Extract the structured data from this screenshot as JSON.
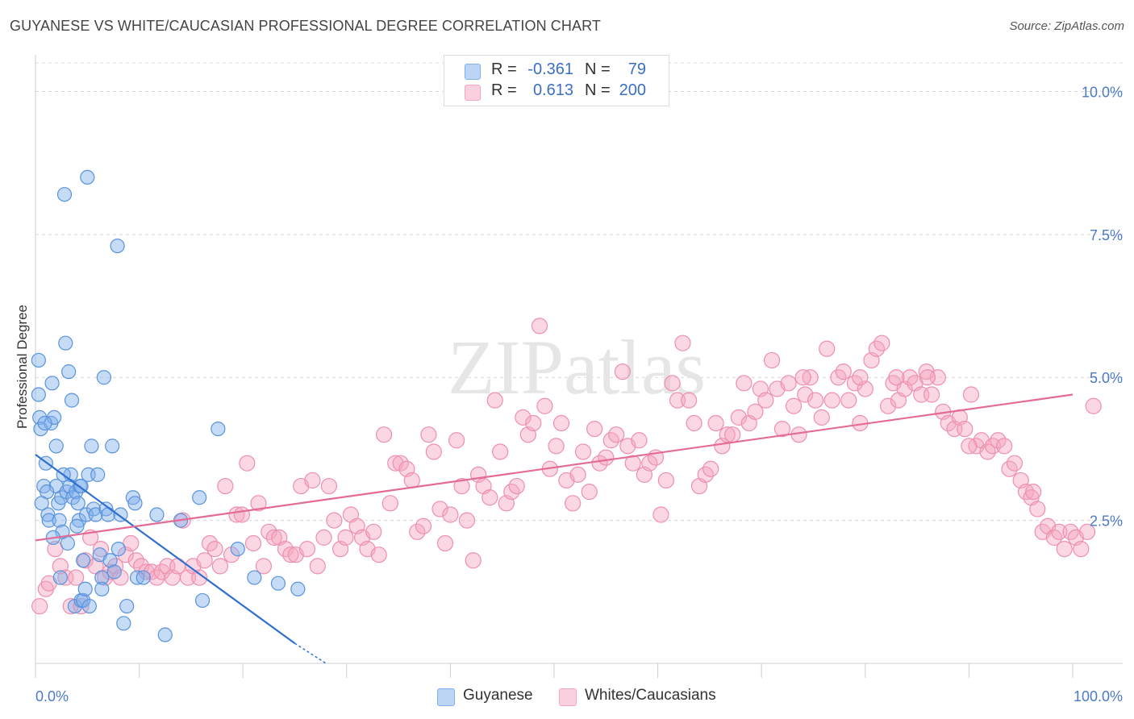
{
  "title": "GUYANESE VS WHITE/CAUCASIAN PROFESSIONAL DEGREE CORRELATION CHART",
  "source": "Source: ZipAtlas.com",
  "watermark": "ZIPatlas",
  "legend": {
    "rows": [
      {
        "r_label": "R =",
        "r_value": "-0.361",
        "n_label": "N =",
        "n_value": "79",
        "color": "#7fb0ea"
      },
      {
        "r_label": "R =",
        "r_value": "0.613",
        "n_label": "N =",
        "n_value": "200",
        "color": "#f4a6bf"
      }
    ]
  },
  "bottom_legend": [
    {
      "label": "Guyanese",
      "color": "#7fb0ea"
    },
    {
      "label": "Whites/Caucasians",
      "color": "#f4a6bf"
    }
  ],
  "chart_data": {
    "type": "scatter",
    "title": "GUYANESE VS WHITE/CAUCASIAN PROFESSIONAL DEGREE CORRELATION CHART",
    "xlabel": "",
    "ylabel": "Professional Degree",
    "xlim": [
      0,
      100
    ],
    "ylim": [
      0,
      10.5
    ],
    "x_tick_labels": [
      "0.0%",
      "100.0%"
    ],
    "y_ticks": [
      2.5,
      5.0,
      7.5,
      10.0
    ],
    "y_tick_labels": [
      "2.5%",
      "5.0%",
      "7.5%",
      "10.0%"
    ],
    "grid": true,
    "series": [
      {
        "name": "Guyanese",
        "color": "#7fb0ea",
        "stroke": "#5a93dc",
        "trend": {
          "x": [
            0,
            25
          ],
          "y": [
            3.65,
            0.35
          ],
          "dash_to": [
            28,
            0.0
          ],
          "color": "#2e6fcf"
        },
        "points": [
          [
            0.3,
            4.7
          ],
          [
            0.3,
            5.3
          ],
          [
            0.4,
            4.3
          ],
          [
            0.5,
            4.1
          ],
          [
            0.8,
            3.1
          ],
          [
            1.0,
            3.5
          ],
          [
            1.2,
            2.6
          ],
          [
            1.3,
            2.5
          ],
          [
            1.5,
            4.2
          ],
          [
            1.6,
            4.9
          ],
          [
            1.8,
            4.3
          ],
          [
            2.0,
            3.8
          ],
          [
            2.0,
            3.1
          ],
          [
            2.2,
            2.8
          ],
          [
            2.3,
            2.5
          ],
          [
            2.4,
            1.5
          ],
          [
            2.5,
            2.9
          ],
          [
            2.6,
            2.3
          ],
          [
            2.8,
            8.2
          ],
          [
            2.9,
            5.6
          ],
          [
            3.0,
            3.0
          ],
          [
            3.2,
            5.1
          ],
          [
            3.3,
            3.1
          ],
          [
            3.5,
            4.6
          ],
          [
            3.6,
            2.9
          ],
          [
            3.8,
            1.0
          ],
          [
            3.9,
            3.0
          ],
          [
            4.1,
            2.8
          ],
          [
            4.2,
            2.5
          ],
          [
            4.3,
            3.1
          ],
          [
            4.4,
            3.1
          ],
          [
            4.4,
            1.1
          ],
          [
            4.6,
            1.1
          ],
          [
            4.6,
            1.8
          ],
          [
            4.8,
            1.3
          ],
          [
            4.9,
            2.6
          ],
          [
            5.0,
            8.5
          ],
          [
            5.1,
            3.3
          ],
          [
            5.2,
            1.0
          ],
          [
            5.4,
            3.8
          ],
          [
            5.6,
            2.7
          ],
          [
            5.8,
            2.6
          ],
          [
            6.2,
            1.9
          ],
          [
            6.4,
            1.5
          ],
          [
            6.4,
            1.3
          ],
          [
            6.6,
            5.0
          ],
          [
            6.8,
            2.7
          ],
          [
            7.0,
            2.6
          ],
          [
            7.2,
            1.8
          ],
          [
            7.4,
            3.8
          ],
          [
            7.6,
            1.6
          ],
          [
            7.9,
            7.3
          ],
          [
            8.2,
            2.6
          ],
          [
            8.5,
            0.7
          ],
          [
            8.8,
            1.0
          ],
          [
            9.4,
            2.9
          ],
          [
            9.6,
            2.8
          ],
          [
            9.8,
            1.5
          ],
          [
            10.4,
            1.5
          ],
          [
            11.7,
            2.6
          ],
          [
            12.5,
            0.5
          ],
          [
            15.8,
            2.9
          ],
          [
            16.1,
            1.1
          ],
          [
            17.6,
            4.1
          ],
          [
            19.5,
            2.0
          ],
          [
            21.1,
            1.5
          ],
          [
            23.4,
            1.4
          ],
          [
            25.3,
            1.3
          ],
          [
            14.0,
            2.5
          ],
          [
            0.9,
            4.2
          ],
          [
            1.1,
            3.0
          ],
          [
            3.4,
            3.3
          ],
          [
            6.0,
            3.3
          ],
          [
            1.7,
            2.2
          ],
          [
            4.0,
            2.4
          ],
          [
            2.7,
            3.3
          ],
          [
            0.6,
            2.8
          ],
          [
            8.0,
            2.0
          ],
          [
            3.1,
            2.1
          ]
        ]
      },
      {
        "name": "Whites/Caucasians",
        "color": "#f4a6bf",
        "stroke": "#ee8fae",
        "trend": {
          "x": [
            0,
            100
          ],
          "y": [
            2.15,
            4.7
          ],
          "color": "#e46b95"
        },
        "points": [
          [
            0.4,
            1.0
          ],
          [
            1.0,
            1.3
          ],
          [
            1.3,
            1.4
          ],
          [
            1.9,
            2.0
          ],
          [
            2.4,
            1.7
          ],
          [
            2.9,
            1.5
          ],
          [
            3.4,
            1.0
          ],
          [
            3.9,
            1.5
          ],
          [
            4.4,
            1.0
          ],
          [
            4.8,
            1.8
          ],
          [
            5.3,
            2.2
          ],
          [
            5.8,
            1.7
          ],
          [
            6.3,
            2.0
          ],
          [
            6.7,
            1.5
          ],
          [
            7.2,
            1.6
          ],
          [
            7.7,
            1.7
          ],
          [
            8.2,
            1.5
          ],
          [
            8.7,
            1.9
          ],
          [
            9.2,
            2.1
          ],
          [
            9.7,
            1.8
          ],
          [
            10.2,
            1.7
          ],
          [
            10.7,
            1.6
          ],
          [
            11.2,
            1.6
          ],
          [
            11.7,
            1.5
          ],
          [
            12.2,
            1.6
          ],
          [
            12.7,
            1.7
          ],
          [
            13.2,
            1.5
          ],
          [
            13.7,
            1.7
          ],
          [
            14.2,
            2.5
          ],
          [
            14.7,
            1.5
          ],
          [
            15.2,
            1.7
          ],
          [
            15.8,
            1.5
          ],
          [
            16.3,
            1.8
          ],
          [
            16.8,
            2.1
          ],
          [
            17.3,
            2.0
          ],
          [
            17.8,
            1.7
          ],
          [
            18.3,
            3.1
          ],
          [
            18.9,
            1.9
          ],
          [
            19.4,
            2.6
          ],
          [
            19.9,
            2.6
          ],
          [
            20.4,
            3.5
          ],
          [
            21.0,
            2.1
          ],
          [
            21.5,
            2.8
          ],
          [
            22.0,
            1.7
          ],
          [
            22.5,
            2.3
          ],
          [
            23.0,
            2.2
          ],
          [
            23.5,
            2.2
          ],
          [
            24.1,
            2.0
          ],
          [
            24.6,
            1.9
          ],
          [
            25.1,
            1.9
          ],
          [
            25.6,
            3.1
          ],
          [
            26.2,
            2.0
          ],
          [
            26.7,
            3.2
          ],
          [
            27.2,
            1.7
          ],
          [
            27.8,
            2.2
          ],
          [
            28.3,
            3.1
          ],
          [
            28.8,
            2.5
          ],
          [
            29.4,
            2.0
          ],
          [
            29.9,
            2.2
          ],
          [
            30.4,
            2.6
          ],
          [
            31.0,
            2.4
          ],
          [
            31.5,
            2.2
          ],
          [
            32.0,
            2.0
          ],
          [
            32.6,
            2.3
          ],
          [
            33.1,
            1.9
          ],
          [
            33.6,
            4.0
          ],
          [
            34.2,
            2.8
          ],
          [
            34.7,
            3.5
          ],
          [
            35.2,
            3.5
          ],
          [
            35.8,
            3.4
          ],
          [
            36.3,
            3.2
          ],
          [
            36.8,
            2.3
          ],
          [
            37.4,
            2.4
          ],
          [
            37.9,
            4.0
          ],
          [
            38.4,
            3.7
          ],
          [
            39.0,
            2.7
          ],
          [
            39.5,
            2.1
          ],
          [
            40.0,
            2.6
          ],
          [
            40.6,
            3.9
          ],
          [
            41.1,
            3.1
          ],
          [
            41.6,
            2.5
          ],
          [
            42.2,
            1.8
          ],
          [
            42.7,
            3.3
          ],
          [
            43.2,
            3.1
          ],
          [
            43.8,
            2.9
          ],
          [
            44.3,
            4.6
          ],
          [
            44.8,
            3.7
          ],
          [
            45.4,
            2.8
          ],
          [
            45.9,
            3.0
          ],
          [
            46.4,
            3.1
          ],
          [
            47.0,
            4.3
          ],
          [
            47.5,
            4.0
          ],
          [
            48.0,
            4.2
          ],
          [
            48.6,
            5.9
          ],
          [
            49.1,
            4.5
          ],
          [
            49.6,
            3.4
          ],
          [
            50.2,
            3.8
          ],
          [
            50.7,
            4.2
          ],
          [
            51.2,
            3.2
          ],
          [
            51.8,
            2.8
          ],
          [
            52.3,
            3.3
          ],
          [
            52.8,
            3.7
          ],
          [
            53.4,
            3.0
          ],
          [
            53.9,
            4.1
          ],
          [
            54.4,
            3.5
          ],
          [
            55.0,
            3.6
          ],
          [
            55.5,
            3.9
          ],
          [
            56.0,
            4.0
          ],
          [
            56.6,
            5.1
          ],
          [
            57.1,
            3.8
          ],
          [
            57.6,
            3.5
          ],
          [
            58.2,
            3.9
          ],
          [
            58.7,
            3.3
          ],
          [
            59.2,
            3.5
          ],
          [
            59.8,
            3.6
          ],
          [
            60.3,
            2.6
          ],
          [
            60.8,
            3.2
          ],
          [
            61.4,
            4.9
          ],
          [
            61.9,
            4.6
          ],
          [
            62.4,
            5.6
          ],
          [
            63.0,
            4.6
          ],
          [
            63.5,
            4.2
          ],
          [
            64.0,
            3.1
          ],
          [
            64.6,
            3.3
          ],
          [
            65.1,
            3.4
          ],
          [
            65.6,
            4.2
          ],
          [
            66.2,
            3.8
          ],
          [
            66.7,
            4.0
          ],
          [
            67.2,
            4.0
          ],
          [
            67.8,
            4.3
          ],
          [
            68.3,
            4.9
          ],
          [
            68.8,
            4.2
          ],
          [
            69.4,
            4.4
          ],
          [
            69.9,
            4.8
          ],
          [
            70.4,
            4.6
          ],
          [
            71.0,
            5.3
          ],
          [
            71.5,
            4.8
          ],
          [
            72.0,
            4.1
          ],
          [
            72.6,
            4.9
          ],
          [
            73.1,
            4.5
          ],
          [
            73.6,
            4.0
          ],
          [
            74.2,
            4.7
          ],
          [
            74.7,
            5.0
          ],
          [
            75.2,
            4.6
          ],
          [
            75.8,
            4.3
          ],
          [
            76.3,
            5.5
          ],
          [
            76.8,
            4.6
          ],
          [
            77.4,
            5.0
          ],
          [
            77.9,
            5.1
          ],
          [
            78.4,
            4.6
          ],
          [
            79.0,
            4.9
          ],
          [
            79.5,
            4.2
          ],
          [
            80.0,
            4.8
          ],
          [
            80.6,
            5.3
          ],
          [
            81.1,
            5.5
          ],
          [
            81.6,
            5.6
          ],
          [
            82.2,
            4.5
          ],
          [
            82.7,
            4.9
          ],
          [
            83.2,
            4.6
          ],
          [
            83.8,
            4.8
          ],
          [
            84.3,
            5.0
          ],
          [
            84.8,
            4.9
          ],
          [
            85.4,
            4.7
          ],
          [
            85.9,
            5.1
          ],
          [
            86.4,
            4.7
          ],
          [
            87.0,
            5.0
          ],
          [
            87.5,
            4.4
          ],
          [
            88.0,
            4.2
          ],
          [
            88.6,
            4.1
          ],
          [
            89.1,
            4.3
          ],
          [
            89.6,
            4.1
          ],
          [
            90.2,
            4.7
          ],
          [
            90.7,
            3.8
          ],
          [
            91.2,
            3.9
          ],
          [
            91.8,
            3.7
          ],
          [
            92.3,
            3.8
          ],
          [
            92.8,
            3.9
          ],
          [
            93.4,
            3.8
          ],
          [
            93.9,
            3.4
          ],
          [
            94.4,
            3.5
          ],
          [
            95.0,
            3.2
          ],
          [
            95.5,
            3.0
          ],
          [
            96.0,
            2.9
          ],
          [
            96.6,
            2.7
          ],
          [
            97.1,
            2.3
          ],
          [
            97.6,
            2.4
          ],
          [
            98.2,
            2.2
          ],
          [
            98.7,
            2.3
          ],
          [
            99.2,
            2.0
          ],
          [
            99.8,
            2.3
          ],
          [
            100.3,
            2.2
          ],
          [
            100.8,
            2.0
          ],
          [
            101.4,
            2.3
          ],
          [
            102.0,
            4.5
          ],
          [
            96.2,
            3.0
          ],
          [
            90.0,
            3.8
          ],
          [
            86.0,
            5.0
          ],
          [
            83.0,
            5.0
          ],
          [
            79.5,
            5.0
          ],
          [
            74.0,
            5.0
          ]
        ]
      }
    ]
  }
}
